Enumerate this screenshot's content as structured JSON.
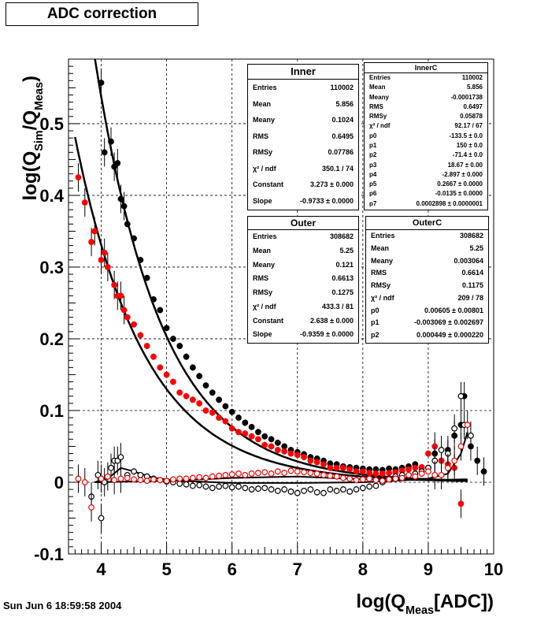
{
  "title": "ADC correction",
  "timestamp": "Sun Jun  6 18:59:58 2004",
  "chart_data": {
    "type": "scatter",
    "title": "ADC correction",
    "xlabel": "log(Q_Meas[ADC])",
    "ylabel": "log(Q_Sim/Q_Meas)",
    "xlim": [
      3.5,
      10
    ],
    "ylim": [
      -0.1,
      0.59
    ],
    "x_ticks": [
      "4",
      "5",
      "6",
      "7",
      "8",
      "9",
      "10"
    ],
    "y_ticks": [
      "-0.1",
      "0",
      "0.1",
      "0.2",
      "0.3",
      "0.4",
      "0.5"
    ],
    "grid": true,
    "series": [
      {
        "name": "Inner",
        "marker": "filled-circle",
        "color": "#000000",
        "x": [
          4.0,
          4.05,
          4.15,
          4.2,
          4.25,
          4.3,
          4.35,
          4.4,
          4.5,
          4.6,
          4.7,
          4.8,
          4.9,
          5.0,
          5.1,
          5.2,
          5.3,
          5.4,
          5.5,
          5.6,
          5.7,
          5.8,
          5.9,
          6.0,
          6.1,
          6.2,
          6.3,
          6.4,
          6.5,
          6.6,
          6.7,
          6.8,
          6.9,
          7.0,
          7.1,
          7.2,
          7.3,
          7.4,
          7.5,
          7.6,
          7.7,
          7.8,
          7.9,
          8.0,
          8.1,
          8.2,
          8.3,
          8.4,
          8.5,
          8.6,
          8.7,
          8.8,
          8.9,
          9.0,
          9.1,
          9.2,
          9.3,
          9.4,
          9.5,
          9.55,
          9.65,
          9.75,
          9.85
        ],
        "y": [
          0.557,
          0.46,
          0.475,
          0.44,
          0.445,
          0.395,
          0.385,
          0.36,
          0.34,
          0.31,
          0.285,
          0.255,
          0.24,
          0.215,
          0.2,
          0.19,
          0.175,
          0.16,
          0.148,
          0.135,
          0.125,
          0.115,
          0.106,
          0.098,
          0.09,
          0.083,
          0.077,
          0.07,
          0.064,
          0.06,
          0.055,
          0.05,
          0.045,
          0.042,
          0.039,
          0.035,
          0.033,
          0.03,
          0.026,
          0.025,
          0.022,
          0.021,
          0.02,
          0.019,
          0.018,
          0.018,
          0.017,
          0.019,
          0.018,
          0.02,
          0.022,
          0.025,
          0.02,
          0.02,
          0.04,
          0.03,
          0.045,
          0.065,
          0.08,
          0.12,
          0.05,
          0.03,
          0.015
        ]
      },
      {
        "name": "Outer",
        "marker": "filled-circle",
        "color": "#ff0000",
        "x": [
          3.65,
          3.75,
          3.85,
          3.9,
          4.0,
          4.05,
          4.1,
          4.2,
          4.25,
          4.3,
          4.35,
          4.4,
          4.5,
          4.6,
          4.7,
          4.8,
          4.9,
          5.0,
          5.1,
          5.2,
          5.3,
          5.4,
          5.5,
          5.6,
          5.7,
          5.8,
          5.9,
          6.0,
          6.1,
          6.2,
          6.3,
          6.4,
          6.5,
          6.6,
          6.7,
          6.8,
          6.9,
          7.0,
          7.1,
          7.2,
          7.3,
          7.4,
          7.5,
          7.6,
          7.7,
          7.8,
          7.9,
          8.0,
          8.1,
          8.2,
          8.3,
          8.4,
          8.5,
          8.6,
          8.7,
          8.8,
          8.9,
          9.0,
          9.1,
          9.2,
          9.3,
          9.4,
          9.5
        ],
        "y": [
          0.425,
          0.39,
          0.335,
          0.35,
          0.31,
          0.32,
          0.3,
          0.275,
          0.26,
          0.26,
          0.24,
          0.23,
          0.22,
          0.205,
          0.19,
          0.175,
          0.16,
          0.15,
          0.14,
          0.125,
          0.12,
          0.115,
          0.11,
          0.1,
          0.097,
          0.09,
          0.085,
          0.075,
          0.07,
          0.068,
          0.064,
          0.06,
          0.052,
          0.05,
          0.045,
          0.043,
          0.04,
          0.038,
          0.035,
          0.03,
          0.028,
          0.025,
          0.02,
          0.02,
          0.02,
          0.018,
          0.015,
          0.015,
          0.013,
          0.012,
          0.012,
          0.013,
          0.014,
          0.016,
          0.018,
          0.02,
          0.021,
          0.04,
          0.05,
          0.03,
          0.025,
          0.02,
          -0.03
        ]
      },
      {
        "name": "InnerC",
        "marker": "open-circle",
        "color": "#000000",
        "x": [
          3.85,
          3.95,
          4.0,
          4.05,
          4.15,
          4.2,
          4.25,
          4.3,
          4.4,
          4.5,
          4.6,
          4.7,
          4.8,
          4.9,
          5.0,
          5.1,
          5.2,
          5.3,
          5.4,
          5.5,
          5.6,
          5.7,
          5.8,
          5.9,
          6.0,
          6.1,
          6.2,
          6.3,
          6.4,
          6.5,
          6.6,
          6.7,
          6.8,
          6.9,
          7.0,
          7.1,
          7.2,
          7.3,
          7.4,
          7.5,
          7.6,
          7.7,
          7.8,
          7.9,
          8.0,
          8.1,
          8.2,
          8.3,
          8.4,
          8.5,
          8.6,
          8.7,
          8.8,
          8.9,
          9.0,
          9.1,
          9.2,
          9.3,
          9.4,
          9.5,
          9.55,
          9.65
        ],
        "y": [
          -0.02,
          0.01,
          -0.05,
          0.0,
          0.02,
          0.03,
          0.03,
          0.035,
          0.01,
          0.015,
          0.01,
          0.008,
          0.005,
          0.003,
          0.001,
          0.0,
          -0.002,
          -0.003,
          -0.005,
          -0.004,
          -0.006,
          -0.008,
          -0.006,
          -0.005,
          -0.007,
          -0.006,
          -0.008,
          -0.01,
          -0.009,
          -0.008,
          -0.01,
          -0.012,
          -0.01,
          -0.013,
          -0.015,
          -0.012,
          -0.01,
          -0.014,
          -0.015,
          -0.01,
          -0.012,
          -0.01,
          -0.013,
          -0.01,
          -0.008,
          -0.006,
          -0.005,
          0.0,
          0.005,
          0.008,
          0.01,
          0.01,
          0.012,
          0.015,
          0.02,
          0.03,
          0.045,
          0.04,
          0.075,
          0.12,
          0.08,
          0.065
        ]
      },
      {
        "name": "OuterC",
        "marker": "open-circle",
        "color": "#ff0000",
        "x": [
          3.65,
          3.75,
          3.85,
          4.0,
          4.1,
          4.2,
          4.3,
          4.4,
          4.5,
          4.6,
          4.7,
          4.8,
          4.9,
          5.0,
          5.1,
          5.2,
          5.3,
          5.4,
          5.5,
          5.6,
          5.7,
          5.8,
          5.9,
          6.0,
          6.1,
          6.2,
          6.3,
          6.4,
          6.5,
          6.6,
          6.7,
          6.8,
          6.9,
          7.0,
          7.1,
          7.2,
          7.3,
          7.4,
          7.5,
          7.6,
          7.7,
          7.8,
          7.9,
          8.0,
          8.1,
          8.2,
          8.3,
          8.4,
          8.5,
          8.6,
          8.7,
          8.8,
          8.9,
          9.0,
          9.1,
          9.2,
          9.3,
          9.4,
          9.5,
          9.6
        ],
        "y": [
          0.005,
          0.0,
          -0.035,
          0.005,
          0.008,
          0.003,
          0.005,
          0.006,
          0.004,
          0.003,
          0.002,
          0.004,
          0.003,
          0.002,
          0.004,
          0.005,
          0.005,
          0.006,
          0.007,
          0.006,
          0.008,
          0.009,
          0.01,
          0.011,
          0.012,
          0.01,
          0.012,
          0.013,
          0.014,
          0.012,
          0.015,
          0.013,
          0.016,
          0.015,
          0.014,
          0.013,
          0.012,
          0.01,
          0.009,
          0.008,
          0.006,
          0.005,
          0.003,
          0.004,
          0.005,
          0.003,
          0.002,
          0.004,
          0.005,
          0.006,
          0.01,
          0.008,
          0.012,
          0.015,
          0.01,
          0.01,
          0.02,
          0.03,
          0.05,
          0.08
        ]
      }
    ],
    "fits": [
      {
        "name": "Inner fit",
        "form": "exp(Constant + Slope*x)",
        "constant": 3.273,
        "slope": -0.9733,
        "color": "#000000"
      },
      {
        "name": "Outer fit",
        "form": "exp(Constant + Slope*x)",
        "constant": 2.638,
        "slope": -0.9359,
        "color": "#000000"
      }
    ]
  },
  "stats": {
    "inner": {
      "title": "Inner",
      "rows": [
        {
          "k": "Entries",
          "v": "110002"
        },
        {
          "k": "Mean",
          "v": "5.856"
        },
        {
          "k": "Meany",
          "v": "0.1024"
        },
        {
          "k": "RMS",
          "v": "0.6495"
        },
        {
          "k": "RMSy",
          "v": "0.07786"
        },
        {
          "k": "χ² / ndf",
          "v": "350.1 / 74"
        },
        {
          "k": "Constant",
          "v": "3.273 ± 0.000"
        },
        {
          "k": "Slope",
          "v": "-0.9733 ± 0.0000"
        }
      ]
    },
    "outer": {
      "title": "Outer",
      "rows": [
        {
          "k": "Entries",
          "v": "308682"
        },
        {
          "k": "Mean",
          "v": "5.25"
        },
        {
          "k": "Meany",
          "v": "0.121"
        },
        {
          "k": "RMS",
          "v": "0.6613"
        },
        {
          "k": "RMSy",
          "v": "0.1275"
        },
        {
          "k": "χ² / ndf",
          "v": "433.3 / 81"
        },
        {
          "k": "Constant",
          "v": "2.638 ± 0.000"
        },
        {
          "k": "Slope",
          "v": "-0.9359 ± 0.0000"
        }
      ]
    },
    "innerC": {
      "title": "InnerC",
      "rows": [
        {
          "k": "Entries",
          "v": "110002"
        },
        {
          "k": "Mean",
          "v": "5.856"
        },
        {
          "k": "Meany",
          "v": "-0.0001738"
        },
        {
          "k": "RMS",
          "v": "0.6497"
        },
        {
          "k": "RMSy",
          "v": "0.05878"
        },
        {
          "k": "χ² / ndf",
          "v": "92.17 / 67"
        },
        {
          "k": "p0",
          "v": "-133.5 ± 0.0"
        },
        {
          "k": "p1",
          "v": "150 ± 0.0"
        },
        {
          "k": "p2",
          "v": "-71.4 ± 0.0"
        },
        {
          "k": "p3",
          "v": "18.67 ± 0.00"
        },
        {
          "k": "p4",
          "v": "-2.897 ± 0.000"
        },
        {
          "k": "p5",
          "v": "0.2667 ± 0.0000"
        },
        {
          "k": "p6",
          "v": "-0.0135 ± 0.0000"
        },
        {
          "k": "p7",
          "v": "0.0002898 ± 0.0000001"
        }
      ]
    },
    "outerC": {
      "title": "OuterC",
      "rows": [
        {
          "k": "Entries",
          "v": "308682"
        },
        {
          "k": "Mean",
          "v": "5.25"
        },
        {
          "k": "Meany",
          "v": "0.003064"
        },
        {
          "k": "RMS",
          "v": "0.6614"
        },
        {
          "k": "RMSy",
          "v": "0.1175"
        },
        {
          "k": "χ² / ndf",
          "v": "209 / 78"
        },
        {
          "k": "p0",
          "v": "0.00605 ± 0.00801"
        },
        {
          "k": "p1",
          "v": "-0.003069 ± 0.002697"
        },
        {
          "k": "p2",
          "v": "0.000449 ± 0.000220"
        }
      ]
    }
  }
}
